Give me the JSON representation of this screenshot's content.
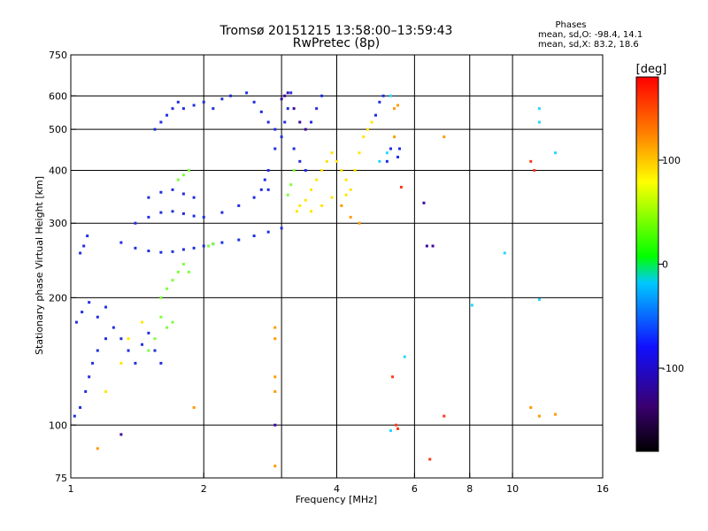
{
  "chart_data": {
    "type": "scatter",
    "title": "Tromsø 20151215 13:58:00–13:59:43",
    "subtitle": "RwPretec (8p)",
    "xlabel": "Frequency [MHz]",
    "ylabel": "Stationary phase Virtual Height [km]",
    "x_scale": "log",
    "y_scale": "log",
    "xlim": [
      1,
      16
    ],
    "ylim": [
      75,
      750
    ],
    "x_ticks": [
      1,
      2,
      4,
      6,
      8,
      10,
      16
    ],
    "x_tick_labels": [
      "1",
      "2",
      "4",
      "6",
      "8",
      "10",
      "16"
    ],
    "x_grid": [
      2,
      3,
      4,
      6,
      8,
      10
    ],
    "y_ticks": [
      75,
      100,
      200,
      300,
      400,
      500,
      600,
      750
    ],
    "y_tick_labels": [
      "75",
      "100",
      "200",
      "300",
      "400",
      "500",
      "600",
      "750"
    ],
    "y_grid": [
      100,
      200,
      300,
      400,
      500,
      600
    ],
    "grid": true,
    "legend": {
      "title": "Phases",
      "lines": [
        "mean, sd,O:  -98.4, 14.1",
        "mean, sd,X:  83.2, 18.6"
      ],
      "placement": "top-right"
    },
    "colorbar": {
      "label": "[deg]",
      "range": [
        -180,
        180
      ],
      "ticks": [
        100,
        0,
        -100
      ],
      "tick_labels": [
        "100",
        "0",
        "-100"
      ],
      "colormap": [
        "#000000",
        "#3a0070",
        "#1010ff",
        "#00c8ff",
        "#00ff00",
        "#ffff00",
        "#ff8000",
        "#ff0000"
      ]
    },
    "series": [
      {
        "color": "#1f2fe0",
        "points": [
          [
            1.02,
            105
          ],
          [
            1.05,
            110
          ],
          [
            1.08,
            120
          ],
          [
            1.1,
            130
          ],
          [
            1.12,
            140
          ],
          [
            1.15,
            150
          ],
          [
            1.2,
            160
          ],
          [
            1.25,
            170
          ],
          [
            1.3,
            160
          ],
          [
            1.35,
            150
          ],
          [
            1.4,
            140
          ],
          [
            1.45,
            155
          ],
          [
            1.5,
            165
          ],
          [
            1.55,
            150
          ],
          [
            1.6,
            140
          ],
          [
            1.03,
            175
          ],
          [
            1.06,
            185
          ],
          [
            1.1,
            195
          ],
          [
            1.15,
            180
          ],
          [
            1.2,
            190
          ],
          [
            1.05,
            255
          ],
          [
            1.07,
            265
          ],
          [
            1.09,
            280
          ],
          [
            1.3,
            270
          ],
          [
            1.4,
            262
          ],
          [
            1.5,
            258
          ],
          [
            1.6,
            256
          ],
          [
            1.7,
            257
          ],
          [
            1.8,
            260
          ],
          [
            1.9,
            262
          ],
          [
            2.0,
            265
          ],
          [
            2.1,
            268
          ],
          [
            2.2,
            270
          ],
          [
            2.4,
            274
          ],
          [
            2.6,
            280
          ],
          [
            2.8,
            286
          ],
          [
            3.0,
            292
          ],
          [
            1.4,
            300
          ],
          [
            1.5,
            310
          ],
          [
            1.6,
            318
          ],
          [
            1.7,
            320
          ],
          [
            1.8,
            316
          ],
          [
            1.9,
            312
          ],
          [
            2.0,
            310
          ],
          [
            2.2,
            318
          ],
          [
            2.4,
            330
          ],
          [
            2.6,
            345
          ],
          [
            2.8,
            360
          ],
          [
            1.5,
            345
          ],
          [
            1.6,
            355
          ],
          [
            1.7,
            360
          ],
          [
            1.8,
            352
          ],
          [
            1.9,
            345
          ],
          [
            1.55,
            500
          ],
          [
            1.6,
            520
          ],
          [
            1.65,
            540
          ],
          [
            1.7,
            560
          ],
          [
            1.75,
            580
          ],
          [
            1.8,
            560
          ],
          [
            1.9,
            570
          ],
          [
            2.0,
            580
          ],
          [
            2.1,
            560
          ],
          [
            2.2,
            590
          ],
          [
            2.3,
            600
          ],
          [
            2.5,
            610
          ],
          [
            2.6,
            580
          ],
          [
            2.7,
            550
          ],
          [
            2.8,
            520
          ],
          [
            2.9,
            500
          ],
          [
            3.0,
            480
          ],
          [
            3.05,
            520
          ],
          [
            3.1,
            560
          ],
          [
            3.15,
            610
          ],
          [
            2.9,
            450
          ],
          [
            2.8,
            400
          ],
          [
            2.75,
            380
          ],
          [
            2.7,
            360
          ],
          [
            3.2,
            450
          ],
          [
            3.3,
            420
          ],
          [
            3.4,
            400
          ],
          [
            3.5,
            520
          ],
          [
            3.6,
            560
          ],
          [
            3.7,
            600
          ],
          [
            4.9,
            540
          ],
          [
            5.0,
            580
          ],
          [
            5.1,
            600
          ],
          [
            5.2,
            420
          ],
          [
            5.3,
            450
          ],
          [
            5.5,
            430
          ],
          [
            5.55,
            450
          ]
        ]
      },
      {
        "color": "#ffe600",
        "points": [
          [
            3.3,
            330
          ],
          [
            3.4,
            340
          ],
          [
            3.5,
            360
          ],
          [
            3.6,
            380
          ],
          [
            3.7,
            400
          ],
          [
            3.8,
            420
          ],
          [
            3.9,
            440
          ],
          [
            4.0,
            420
          ],
          [
            4.1,
            400
          ],
          [
            4.2,
            380
          ],
          [
            4.3,
            360
          ],
          [
            4.4,
            400
          ],
          [
            4.5,
            440
          ],
          [
            4.6,
            480
          ],
          [
            4.7,
            500
          ],
          [
            4.8,
            520
          ],
          [
            3.25,
            320
          ],
          [
            3.5,
            320
          ],
          [
            3.7,
            330
          ],
          [
            3.9,
            345
          ],
          [
            4.2,
            350
          ],
          [
            1.2,
            120
          ],
          [
            1.3,
            140
          ],
          [
            1.35,
            160
          ],
          [
            1.45,
            175
          ]
        ]
      },
      {
        "color": "#7dff3a",
        "points": [
          [
            1.6,
            200
          ],
          [
            1.65,
            210
          ],
          [
            1.7,
            220
          ],
          [
            1.75,
            230
          ],
          [
            1.8,
            240
          ],
          [
            1.85,
            230
          ],
          [
            1.6,
            180
          ],
          [
            1.65,
            170
          ],
          [
            1.7,
            175
          ],
          [
            1.55,
            160
          ],
          [
            1.5,
            150
          ],
          [
            1.8,
            390
          ],
          [
            1.85,
            400
          ],
          [
            1.75,
            380
          ],
          [
            3.1,
            350
          ],
          [
            3.15,
            370
          ],
          [
            3.2,
            400
          ],
          [
            2.05,
            265
          ],
          [
            2.1,
            268
          ]
        ]
      },
      {
        "color": "#3b0a9e",
        "points": [
          [
            3.0,
            590
          ],
          [
            3.05,
            600
          ],
          [
            3.1,
            610
          ],
          [
            3.2,
            560
          ],
          [
            3.3,
            520
          ],
          [
            3.4,
            500
          ],
          [
            6.3,
            335
          ],
          [
            6.4,
            265
          ],
          [
            6.6,
            265
          ],
          [
            2.9,
            100
          ],
          [
            1.3,
            95
          ]
        ]
      },
      {
        "color": "#ff3a1a",
        "points": [
          [
            5.45,
            100
          ],
          [
            5.5,
            98
          ],
          [
            5.35,
            130
          ],
          [
            6.5,
            83
          ],
          [
            7.0,
            105
          ],
          [
            5.6,
            365
          ],
          [
            11.0,
            420
          ],
          [
            11.2,
            400
          ]
        ]
      },
      {
        "color": "#ff9a00",
        "points": [
          [
            4.1,
            330
          ],
          [
            4.3,
            310
          ],
          [
            4.5,
            300
          ],
          [
            5.4,
            560
          ],
          [
            5.5,
            570
          ],
          [
            5.4,
            480
          ],
          [
            7.0,
            480
          ],
          [
            1.9,
            110
          ],
          [
            11.0,
            110
          ],
          [
            11.5,
            105
          ],
          [
            12.5,
            106
          ],
          [
            2.9,
            170
          ],
          [
            2.9,
            160
          ],
          [
            2.9,
            130
          ],
          [
            2.9,
            120
          ],
          [
            2.9,
            80
          ],
          [
            1.15,
            88
          ]
        ]
      },
      {
        "color": "#22d8ff",
        "points": [
          [
            5.3,
            600
          ],
          [
            5.2,
            440
          ],
          [
            5.0,
            420
          ],
          [
            5.3,
            97
          ],
          [
            5.7,
            145
          ],
          [
            8.1,
            192
          ],
          [
            9.6,
            255
          ],
          [
            11.5,
            560
          ],
          [
            11.5,
            520
          ],
          [
            11.5,
            198
          ],
          [
            12.5,
            440
          ]
        ]
      }
    ]
  }
}
